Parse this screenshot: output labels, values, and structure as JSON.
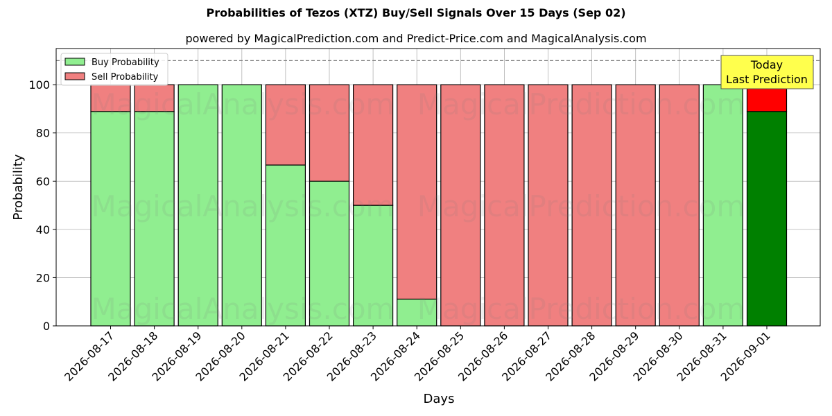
{
  "chart_data": {
    "type": "bar",
    "title": "Probabilities of Tezos (XTZ) Buy/Sell Signals Over 15 Days (Sep 02)",
    "subtitle": "powered by MagicalPrediction.com and Predict-Price.com and MagicalAnalysis.com",
    "xlabel": "Days",
    "ylabel": "Probability",
    "ylim": [
      0,
      115
    ],
    "yticks": [
      0,
      20,
      40,
      60,
      80,
      100
    ],
    "reference_line": 110,
    "grid": true,
    "stacked": true,
    "legend_position": "top-left",
    "categories": [
      "2026-08-17",
      "2026-08-18",
      "2026-08-19",
      "2026-08-20",
      "2026-08-21",
      "2026-08-22",
      "2026-08-23",
      "2026-08-24",
      "2026-08-25",
      "2026-08-26",
      "2026-08-27",
      "2026-08-28",
      "2026-08-29",
      "2026-08-30",
      "2026-08-31",
      "2026-09-01"
    ],
    "series": [
      {
        "name": "Buy Probability",
        "color": "#90ee90",
        "values": [
          88.9,
          88.9,
          100,
          100,
          66.7,
          60,
          50,
          11.1,
          0,
          0,
          0,
          0,
          0,
          0,
          100,
          88.9
        ]
      },
      {
        "name": "Sell Probability",
        "color": "#f08080",
        "values": [
          11.1,
          11.1,
          0,
          0,
          33.3,
          40,
          50,
          88.9,
          100,
          100,
          100,
          100,
          100,
          100,
          0,
          11.1
        ]
      }
    ],
    "highlight": {
      "index": 15,
      "buy_color": "#008000",
      "sell_color": "#ff0000"
    },
    "annotation": {
      "line1": "Today",
      "line2": "Last Prediction",
      "background": "#ffff4d"
    },
    "watermarks": [
      "MagicalAnalysis.com",
      "MagicalPrediction.com"
    ]
  }
}
